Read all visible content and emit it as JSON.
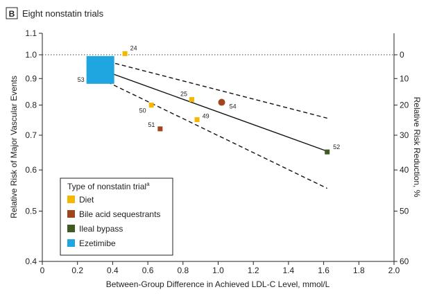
{
  "panel": {
    "letter": "B",
    "title": "Eight nonstatin trials"
  },
  "chart_data": {
    "type": "scatter",
    "title": "Eight nonstatin trials",
    "xlabel": "Between-Group Difference in Achieved LDL-C Level, mmol/L",
    "ylabel": "Relative Risk of Major Vascular Events",
    "y2label": "Relative Risk Reduction, %",
    "xlim": [
      0,
      2.0
    ],
    "ylim": [
      0.4,
      1.1
    ],
    "yscale": "log",
    "xticks": [
      "0",
      "0.2",
      "0.4",
      "0.6",
      "0.8",
      "1.0",
      "1.2",
      "1.4",
      "1.6",
      "1.8",
      "2.0"
    ],
    "xtick_values": [
      0,
      0.2,
      0.4,
      0.6,
      0.8,
      1.0,
      1.2,
      1.4,
      1.6,
      1.8,
      2.0
    ],
    "yticks": [
      "0.4",
      "0.5",
      "0.6",
      "0.7",
      "0.8",
      "0.9",
      "1.0",
      "1.1"
    ],
    "ytick_values": [
      0.4,
      0.5,
      0.6,
      0.7,
      0.8,
      0.9,
      1.0,
      1.1
    ],
    "y2ticks": [
      "0",
      "10",
      "20",
      "30",
      "40",
      "50",
      "60"
    ],
    "y2tick_values": [
      0,
      10,
      20,
      30,
      40,
      50,
      60
    ],
    "reference_line": {
      "y": 1.0,
      "style": "dotted"
    },
    "grid": false,
    "legend_title_main": "Type of nonstatin trial",
    "legend_title_sup": "a",
    "legend_position": "bottom-left",
    "categories": [
      {
        "name": "Diet",
        "color": "#F5B800"
      },
      {
        "name": "Bile acid sequestrants",
        "color": "#A0461F"
      },
      {
        "name": "Ileal bypass",
        "color": "#3E5B23"
      },
      {
        "name": "Ezetimibe",
        "color": "#1FA6E0"
      }
    ],
    "points": [
      {
        "label": "24",
        "x": 0.47,
        "y": 1.005,
        "category": "Diet",
        "shape": "square",
        "size": "small"
      },
      {
        "label": "25",
        "x": 0.85,
        "y": 0.82,
        "category": "Diet",
        "shape": "square",
        "size": "small"
      },
      {
        "label": "50",
        "x": 0.62,
        "y": 0.8,
        "category": "Diet",
        "shape": "square",
        "size": "small"
      },
      {
        "label": "49",
        "x": 0.88,
        "y": 0.75,
        "category": "Diet",
        "shape": "square",
        "size": "small"
      },
      {
        "label": "51",
        "x": 0.67,
        "y": 0.72,
        "category": "Bile acid sequestrants",
        "shape": "square",
        "size": "small"
      },
      {
        "label": "54",
        "x": 1.02,
        "y": 0.81,
        "category": "Bile acid sequestrants",
        "shape": "circle",
        "size": "small"
      },
      {
        "label": "52",
        "x": 1.62,
        "y": 0.65,
        "category": "Ileal bypass",
        "shape": "square",
        "size": "small"
      },
      {
        "label": "53",
        "x": 0.33,
        "y": 0.935,
        "category": "Ezetimibe",
        "shape": "square",
        "size": "large"
      }
    ],
    "fit_line": {
      "x": [
        0.3,
        1.62
      ],
      "y": [
        0.945,
        0.652
      ]
    },
    "ci_upper": {
      "x": [
        0.3,
        1.62
      ],
      "y": [
        0.985,
        0.755
      ]
    },
    "ci_lower": {
      "x": [
        0.3,
        1.62
      ],
      "y": [
        0.91,
        0.553
      ]
    }
  }
}
